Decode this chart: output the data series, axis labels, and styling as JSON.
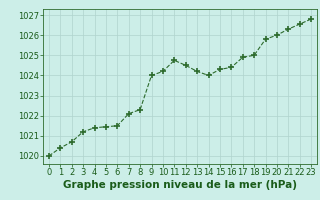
{
  "x": [
    0,
    1,
    2,
    3,
    4,
    5,
    6,
    7,
    8,
    9,
    10,
    11,
    12,
    13,
    14,
    15,
    16,
    17,
    18,
    19,
    20,
    21,
    22,
    23
  ],
  "y": [
    1020.0,
    1020.4,
    1020.7,
    1021.2,
    1021.4,
    1021.45,
    1021.5,
    1022.1,
    1022.3,
    1024.0,
    1024.2,
    1024.75,
    1024.5,
    1024.2,
    1024.0,
    1024.3,
    1024.4,
    1024.9,
    1025.0,
    1025.8,
    1026.0,
    1026.3,
    1026.55,
    1026.8
  ],
  "line_color": "#2d6b2d",
  "marker": "+",
  "marker_size": 4,
  "bg_color": "#cceee8",
  "grid_color": "#b0d4ce",
  "title": "Graphe pression niveau de la mer (hPa)",
  "ylim": [
    1019.6,
    1027.3
  ],
  "yticks": [
    1020,
    1021,
    1022,
    1023,
    1024,
    1025,
    1026,
    1027
  ],
  "xticks": [
    0,
    1,
    2,
    3,
    4,
    5,
    6,
    7,
    8,
    9,
    10,
    11,
    12,
    13,
    14,
    15,
    16,
    17,
    18,
    19,
    20,
    21,
    22,
    23
  ],
  "title_color": "#1a5c1a",
  "title_fontsize": 7.5,
  "tick_fontsize": 6,
  "tick_color": "#1a5c1a",
  "linewidth": 0.8,
  "marker_linewidth": 1.2
}
